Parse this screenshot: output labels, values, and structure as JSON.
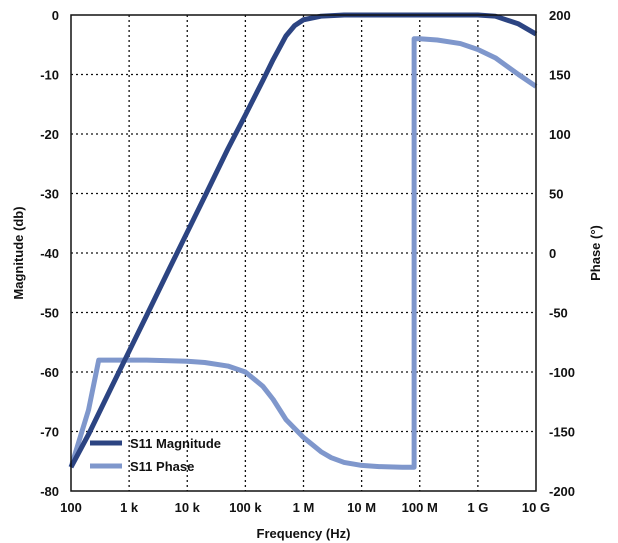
{
  "chart_data": {
    "type": "line",
    "xlabel": "Frequency (Hz)",
    "ylabel_left": "Magnitude (db)",
    "ylabel_right": "Phase (°)",
    "x_scale": "log",
    "xlim": [
      100,
      10000000000
    ],
    "ylim_left": [
      -80,
      0
    ],
    "ylim_right": [
      -200,
      200
    ],
    "grid": true,
    "legend_position": "bottom-left",
    "x_ticks": [
      {
        "value": 100,
        "label": "100"
      },
      {
        "value": 1000,
        "label": "1 k"
      },
      {
        "value": 10000,
        "label": "10 k"
      },
      {
        "value": 100000,
        "label": "100 k"
      },
      {
        "value": 1000000,
        "label": "1 M"
      },
      {
        "value": 10000000,
        "label": "10 M"
      },
      {
        "value": 100000000,
        "label": "100 M"
      },
      {
        "value": 1000000000,
        "label": "1 G"
      },
      {
        "value": 10000000000,
        "label": "10 G"
      }
    ],
    "y_ticks_left": [
      0,
      -10,
      -20,
      -30,
      -40,
      -50,
      -60,
      -70,
      -80
    ],
    "y_ticks_right": [
      200,
      150,
      100,
      50,
      0,
      -50,
      -100,
      -150,
      -200
    ],
    "series": [
      {
        "name": "S11 Magnitude",
        "axis": "left",
        "color": "#2c4482",
        "x": [
          100,
          200,
          500,
          1000,
          2000,
          5000,
          10000,
          20000,
          50000,
          100000,
          200000,
          300000,
          500000,
          700000,
          1000000,
          2000000,
          5000000,
          10000000,
          100000000,
          500000000,
          1000000000,
          2000000000,
          5000000000,
          10000000000
        ],
        "y": [
          -76,
          -70.5,
          -62.5,
          -56.5,
          -50.5,
          -42.5,
          -36.5,
          -30.5,
          -22.5,
          -16.8,
          -11,
          -7.5,
          -3.5,
          -1.8,
          -0.8,
          -0.2,
          0,
          0,
          0,
          0,
          0,
          -0.2,
          -1.5,
          -3.2
        ]
      },
      {
        "name": "S11 Phase",
        "axis": "right",
        "color": "#7f97cc",
        "x": [
          100,
          200,
          300,
          500,
          1000,
          2000,
          5000,
          10000,
          20000,
          50000,
          100000,
          200000,
          300000,
          500000,
          1000000,
          2000000,
          3000000,
          5000000,
          10000000,
          20000000,
          50000000,
          80000000,
          80000000,
          100000000,
          200000000,
          500000000,
          1000000000,
          2000000000,
          5000000000,
          10000000000
        ],
        "y": [
          -180,
          -132,
          -90,
          -90,
          -90,
          -90,
          -90.5,
          -91,
          -92,
          -95,
          -100,
          -112,
          -123,
          -140,
          -155,
          -167,
          -172,
          -176,
          -178.5,
          -179.5,
          -180,
          -180,
          180,
          180,
          179,
          176,
          171,
          164,
          150,
          140
        ]
      }
    ]
  }
}
